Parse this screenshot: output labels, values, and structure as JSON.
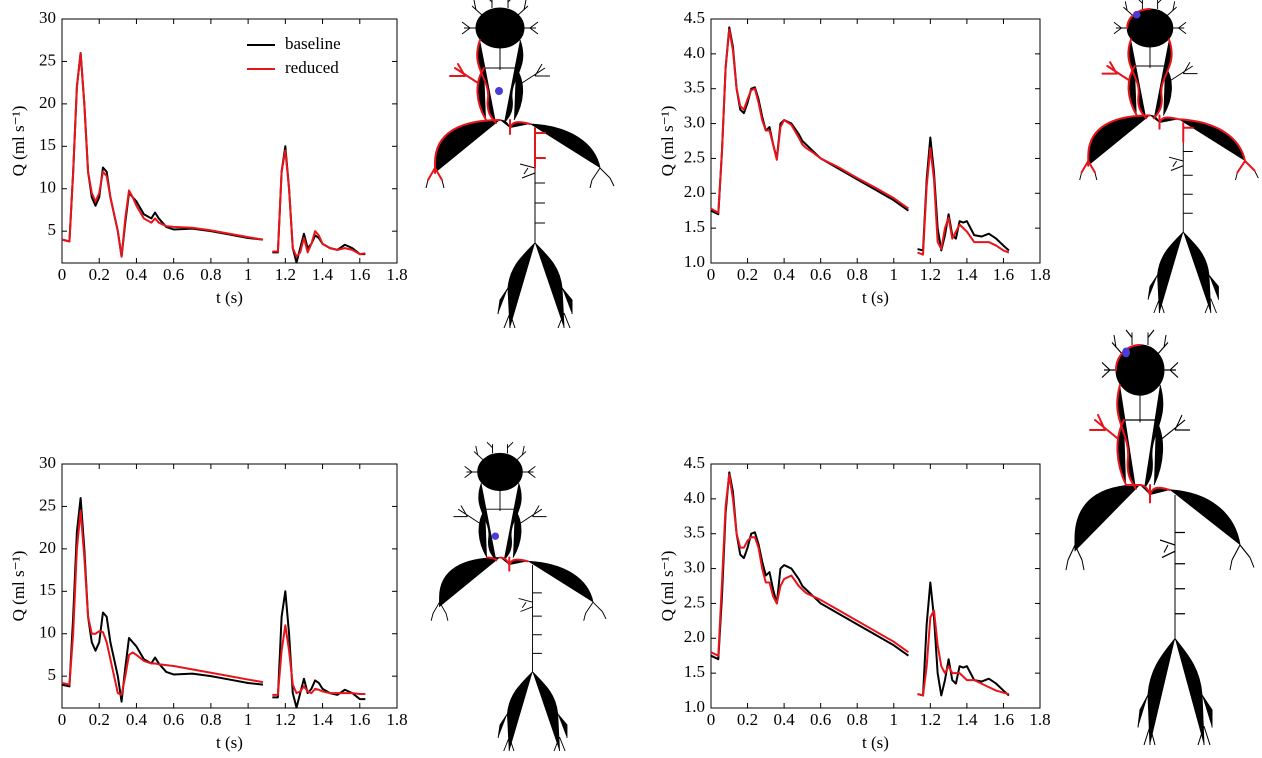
{
  "chart_data": [
    {
      "type": "line",
      "xlabel": "t (s)",
      "ylabel": "Q (ml s⁻¹)",
      "x": [
        0,
        0.04,
        0.06,
        0.08,
        0.1,
        0.12,
        0.14,
        0.16,
        0.18,
        0.2,
        0.22,
        0.24,
        0.26,
        0.28,
        0.3,
        0.32,
        0.34,
        0.36,
        0.38,
        0.4,
        0.44,
        0.48,
        0.5,
        0.52,
        0.56,
        0.6,
        0.7,
        0.8,
        0.9,
        1.0,
        1.08,
        1.1,
        1.13,
        1.16,
        1.18,
        1.2,
        1.22,
        1.24,
        1.26,
        1.28,
        1.3,
        1.32,
        1.34,
        1.36,
        1.38,
        1.4,
        1.44,
        1.48,
        1.52,
        1.56,
        1.6,
        1.63
      ],
      "series": [
        {
          "name": "baseline",
          "color": "#000000",
          "values": [
            4.0,
            3.8,
            12,
            22,
            26,
            20,
            12,
            9,
            8,
            9,
            12.5,
            12,
            9,
            7,
            5,
            2,
            6,
            9.5,
            9,
            8.5,
            7,
            6.5,
            7.2,
            6.5,
            5.5,
            5.2,
            5.3,
            5.0,
            4.6,
            4.2,
            4.0,
            null,
            2.5,
            2.5,
            12,
            15,
            10,
            3,
            1.3,
            3,
            4.7,
            3,
            3.5,
            4.5,
            4.2,
            3.5,
            3,
            2.8,
            3.4,
            3,
            2.3,
            2.3
          ]
        },
        {
          "name": "reduced",
          "color": "#e8141b",
          "values": [
            4.0,
            3.8,
            12,
            22,
            26,
            20,
            12,
            9.5,
            8.5,
            9.5,
            12,
            11.5,
            9,
            7,
            5,
            2,
            6.5,
            9.8,
            9,
            8,
            6.5,
            6,
            6.5,
            6,
            5.6,
            5.5,
            5.4,
            5.1,
            4.7,
            4.3,
            4.0,
            null,
            2.6,
            2.6,
            12,
            14.5,
            10,
            3,
            2,
            2.5,
            4.2,
            2.5,
            3.5,
            5,
            4.5,
            3.5,
            3,
            2.8,
            3,
            2.8,
            2.3,
            2.4
          ]
        }
      ],
      "xlim": [
        0,
        1.8
      ],
      "xticks": [
        0,
        0.2,
        0.4,
        0.6,
        0.8,
        1,
        1.2,
        1.4,
        1.6,
        1.8
      ],
      "ylim": [
        1.25,
        30
      ],
      "yticks": [
        5,
        10,
        15,
        20,
        25,
        30
      ],
      "legend": "upper right"
    },
    {
      "type": "line",
      "xlabel": "t (s)",
      "ylabel": "Q (ml s⁻¹)",
      "x": [
        0,
        0.04,
        0.06,
        0.08,
        0.1,
        0.12,
        0.14,
        0.16,
        0.18,
        0.2,
        0.22,
        0.24,
        0.26,
        0.28,
        0.3,
        0.32,
        0.34,
        0.36,
        0.38,
        0.4,
        0.44,
        0.48,
        0.5,
        0.52,
        0.56,
        0.6,
        0.7,
        0.8,
        0.9,
        1.0,
        1.08,
        1.1,
        1.13,
        1.16,
        1.18,
        1.2,
        1.22,
        1.24,
        1.26,
        1.28,
        1.3,
        1.32,
        1.34,
        1.36,
        1.38,
        1.4,
        1.44,
        1.48,
        1.52,
        1.56,
        1.6,
        1.63
      ],
      "series": [
        {
          "color": "#000000",
          "values": [
            1.75,
            1.7,
            2.6,
            3.8,
            4.38,
            4.1,
            3.5,
            3.2,
            3.15,
            3.3,
            3.5,
            3.52,
            3.35,
            3.1,
            2.9,
            2.95,
            2.7,
            2.5,
            3.0,
            3.05,
            3.0,
            2.85,
            2.75,
            2.7,
            2.6,
            2.5,
            2.35,
            2.2,
            2.05,
            1.9,
            1.75,
            null,
            1.2,
            1.18,
            2.2,
            2.8,
            2.3,
            1.5,
            1.18,
            1.4,
            1.7,
            1.4,
            1.35,
            1.6,
            1.58,
            1.6,
            1.4,
            1.38,
            1.42,
            1.35,
            1.25,
            1.18
          ]
        },
        {
          "color": "#e8141b",
          "values": [
            1.78,
            1.72,
            2.6,
            3.8,
            4.35,
            4.05,
            3.5,
            3.25,
            3.2,
            3.35,
            3.48,
            3.5,
            3.3,
            3.05,
            2.9,
            2.9,
            2.7,
            2.48,
            2.95,
            3.05,
            2.98,
            2.8,
            2.7,
            2.65,
            2.58,
            2.5,
            2.37,
            2.22,
            2.08,
            1.93,
            1.78,
            null,
            1.15,
            1.12,
            2.1,
            2.65,
            2.2,
            1.3,
            1.2,
            1.5,
            1.65,
            1.35,
            1.45,
            1.55,
            1.5,
            1.45,
            1.3,
            1.3,
            1.3,
            1.25,
            1.18,
            1.15
          ]
        }
      ],
      "xlim": [
        0,
        1.8
      ],
      "xticks": [
        0,
        0.2,
        0.4,
        0.6,
        0.8,
        1,
        1.2,
        1.4,
        1.6,
        1.8
      ],
      "ylim": [
        1.0,
        4.5
      ],
      "yticks": [
        {
          "value": 1,
          "label": "1.0"
        },
        1.5,
        {
          "value": 2,
          "label": "2.0"
        },
        2.5,
        {
          "value": 3,
          "label": "3.0"
        },
        3.5,
        {
          "value": 4,
          "label": "4.0"
        },
        4.5
      ]
    },
    {
      "type": "line",
      "xlabel": "t (s)",
      "ylabel": "Q (ml s⁻¹)",
      "x": [
        0,
        0.04,
        0.06,
        0.08,
        0.1,
        0.12,
        0.14,
        0.16,
        0.18,
        0.2,
        0.22,
        0.24,
        0.26,
        0.28,
        0.3,
        0.32,
        0.34,
        0.36,
        0.38,
        0.4,
        0.44,
        0.48,
        0.5,
        0.52,
        0.56,
        0.6,
        0.7,
        0.8,
        0.9,
        1.0,
        1.08,
        1.1,
        1.13,
        1.16,
        1.18,
        1.2,
        1.22,
        1.24,
        1.26,
        1.28,
        1.3,
        1.32,
        1.34,
        1.36,
        1.38,
        1.4,
        1.44,
        1.48,
        1.52,
        1.56,
        1.6,
        1.63
      ],
      "series": [
        {
          "color": "#000000",
          "values": [
            4.0,
            3.8,
            12,
            22,
            26,
            20,
            12,
            9,
            8,
            9,
            12.5,
            12,
            9,
            7,
            5,
            2,
            6,
            9.5,
            9,
            8.5,
            7,
            6.5,
            7.2,
            6.5,
            5.5,
            5.2,
            5.3,
            5.0,
            4.6,
            4.2,
            4.0,
            null,
            2.5,
            2.5,
            12,
            15,
            10,
            3,
            1.3,
            3,
            4.7,
            3,
            3.5,
            4.5,
            4.2,
            3.5,
            3,
            2.8,
            3.4,
            3,
            2.3,
            2.3
          ]
        },
        {
          "color": "#e8141b",
          "values": [
            4.2,
            4.0,
            10,
            20,
            24.5,
            19,
            12,
            10,
            10,
            10.3,
            10.2,
            9,
            7,
            5,
            3,
            2.8,
            5,
            7.5,
            7.8,
            7.5,
            6.8,
            6.5,
            6.5,
            6.4,
            6.3,
            6.2,
            5.8,
            5.4,
            5.0,
            4.6,
            4.3,
            null,
            2.8,
            2.8,
            8,
            11,
            8,
            4,
            3,
            3.2,
            3.8,
            3.2,
            3.0,
            3.5,
            3.4,
            3.2,
            3.0,
            3.0,
            3.0,
            3.0,
            2.9,
            2.9
          ]
        }
      ],
      "xlim": [
        0,
        1.8
      ],
      "xticks": [
        0,
        0.2,
        0.4,
        0.6,
        0.8,
        1,
        1.2,
        1.4,
        1.6,
        1.8
      ],
      "ylim": [
        1.25,
        30
      ],
      "yticks": [
        5,
        10,
        15,
        20,
        25,
        30
      ]
    },
    {
      "type": "line",
      "xlabel": "t (s)",
      "ylabel": "Q (ml s⁻¹)",
      "x": [
        0,
        0.04,
        0.06,
        0.08,
        0.1,
        0.12,
        0.14,
        0.16,
        0.18,
        0.2,
        0.22,
        0.24,
        0.26,
        0.28,
        0.3,
        0.32,
        0.34,
        0.36,
        0.38,
        0.4,
        0.44,
        0.48,
        0.5,
        0.52,
        0.56,
        0.6,
        0.7,
        0.8,
        0.9,
        1.0,
        1.08,
        1.1,
        1.13,
        1.16,
        1.18,
        1.2,
        1.22,
        1.24,
        1.26,
        1.28,
        1.3,
        1.32,
        1.34,
        1.36,
        1.38,
        1.4,
        1.44,
        1.48,
        1.52,
        1.56,
        1.6,
        1.63
      ],
      "series": [
        {
          "color": "#000000",
          "values": [
            1.75,
            1.7,
            2.6,
            3.8,
            4.38,
            4.1,
            3.5,
            3.2,
            3.15,
            3.3,
            3.5,
            3.52,
            3.35,
            3.1,
            2.9,
            2.95,
            2.7,
            2.5,
            3.0,
            3.05,
            3.0,
            2.85,
            2.75,
            2.7,
            2.6,
            2.5,
            2.35,
            2.2,
            2.05,
            1.9,
            1.75,
            null,
            1.2,
            1.18,
            2.2,
            2.8,
            2.3,
            1.5,
            1.18,
            1.4,
            1.7,
            1.4,
            1.35,
            1.6,
            1.58,
            1.6,
            1.4,
            1.38,
            1.42,
            1.35,
            1.25,
            1.18
          ]
        },
        {
          "color": "#e8141b",
          "values": [
            1.8,
            1.75,
            2.8,
            3.9,
            4.35,
            4.0,
            3.5,
            3.3,
            3.3,
            3.4,
            3.45,
            3.45,
            3.3,
            3.0,
            2.8,
            2.8,
            2.6,
            2.5,
            2.75,
            2.85,
            2.9,
            2.75,
            2.7,
            2.65,
            2.6,
            2.55,
            2.4,
            2.25,
            2.1,
            1.95,
            1.8,
            null,
            1.2,
            1.18,
            1.6,
            2.3,
            2.4,
            1.9,
            1.6,
            1.5,
            1.6,
            1.5,
            1.5,
            1.5,
            1.45,
            1.4,
            1.4,
            1.35,
            1.3,
            1.25,
            1.22,
            1.2
          ]
        }
      ],
      "xlim": [
        0,
        1.8
      ],
      "xticks": [
        0,
        0.2,
        0.4,
        0.6,
        0.8,
        1,
        1.2,
        1.4,
        1.6,
        1.8
      ],
      "ylim": [
        1.0,
        4.5
      ],
      "yticks": [
        {
          "value": 1,
          "label": "1.0"
        },
        1.5,
        {
          "value": 2,
          "label": "2.0"
        },
        2.5,
        {
          "value": 3,
          "label": "3.0"
        },
        3.5,
        {
          "value": 4,
          "label": "4.0"
        },
        4.5
      ]
    }
  ]
}
